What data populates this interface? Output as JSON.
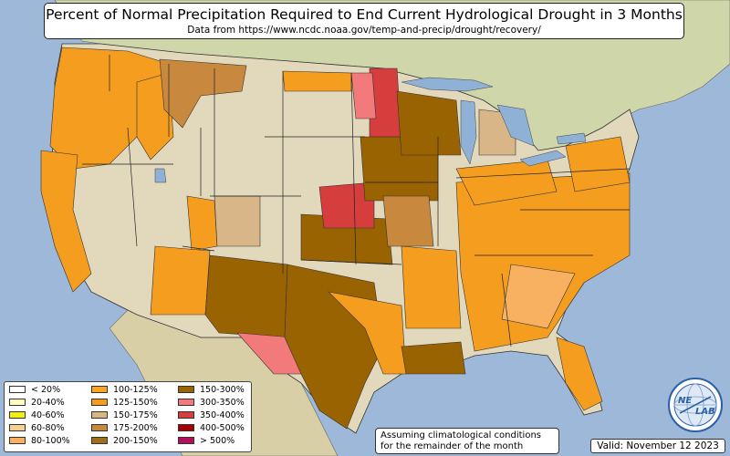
{
  "title": "Percent of Normal Precipitation Required to End Current Hydrological Drought in 3 Months",
  "subtitle": "Data from https://www.ncdc.noaa.gov/temp-and-precip/drought/recovery/",
  "note": {
    "line1": "Assuming climatological conditions",
    "line2": "for the remainder of the month"
  },
  "valid": "Valid: November 12 2023",
  "logo": {
    "text_a": "NE",
    "text_b": "LAB",
    "brand_color": "#2a5fa8"
  },
  "legend": {
    "items": [
      {
        "label": "< 20%",
        "color": "#ffffff"
      },
      {
        "label": "20-40%",
        "color": "#ffffc0"
      },
      {
        "label": "40-60%",
        "color": "#f2ee1a"
      },
      {
        "label": "60-80%",
        "color": "#f7cf95"
      },
      {
        "label": "80-100%",
        "color": "#f8b160"
      },
      {
        "label": "100-125%",
        "color": "#fba526"
      },
      {
        "label": "125-150%",
        "color": "#f59d1f"
      },
      {
        "label": "150-175%",
        "color": "#d9b687"
      },
      {
        "label": "175-200%",
        "color": "#c8893e"
      },
      {
        "label": "200-150%",
        "color": "#a06e1c"
      },
      {
        "label": "150-300%",
        "color": "#9a6302"
      },
      {
        "label": "300-350%",
        "color": "#f27a7a"
      },
      {
        "label": "350-400%",
        "color": "#d63d3d"
      },
      {
        "label": "400-500%",
        "color": "#a00000"
      },
      {
        "label": "> 500%",
        "color": "#b0105d"
      }
    ]
  },
  "colors": {
    "ocean": "#9db8d8",
    "land": "#e2d9bd",
    "land_canada": "#cfd6a9",
    "land_mexico": "#d8cfa6",
    "lakes": "#8fb1d6"
  }
}
